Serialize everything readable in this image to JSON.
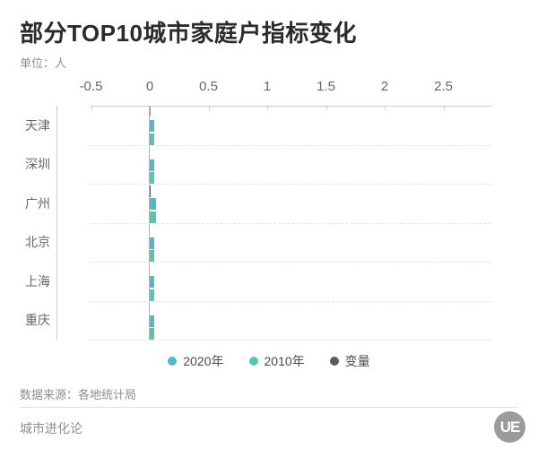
{
  "header": {
    "title": "部分TOP10城市家庭户指标变化",
    "unit_label": "单位：人"
  },
  "chart_data": {
    "type": "bar",
    "orientation": "horizontal",
    "title": "部分TOP10城市家庭户指标变化",
    "xlabel": "",
    "ylabel": "",
    "unit": "人",
    "categories": [
      "天津",
      "深圳",
      "广州",
      "北京",
      "上海",
      "重庆"
    ],
    "series": [
      {
        "name": "2020年",
        "color": "#58b7c7",
        "values": [
          0.04,
          0.04,
          0.05,
          0.04,
          0.04,
          0.04
        ]
      },
      {
        "name": "2010年",
        "color": "#56c6b4",
        "values": [
          0.04,
          0.04,
          0.05,
          0.04,
          0.04,
          0.04
        ]
      },
      {
        "name": "变量",
        "color": "#555c66",
        "values": [
          0,
          0,
          0.01,
          0,
          0,
          0
        ]
      }
    ],
    "x_ticks": [
      -0.5,
      0,
      0.5,
      1,
      1.5,
      2,
      2.5
    ],
    "xlim": [
      -0.51,
      2.91
    ],
    "grid": "dashed-row-separators",
    "legend_position": "bottom",
    "legend": [
      "2020年",
      "2010年",
      "变量"
    ]
  },
  "colors": {
    "series_2020": "#58b7c7",
    "series_2010": "#56c6b4",
    "series_change": "#555c66",
    "axis_line": "#cccccc",
    "zero_line": "#b3b3b3",
    "grid_dashed": "#e4e4e4",
    "text_gray": "#8e8e8e"
  },
  "footer": {
    "source": "数据来源：各地统计局",
    "brand": "城市进化论",
    "logo_text": "UE"
  }
}
